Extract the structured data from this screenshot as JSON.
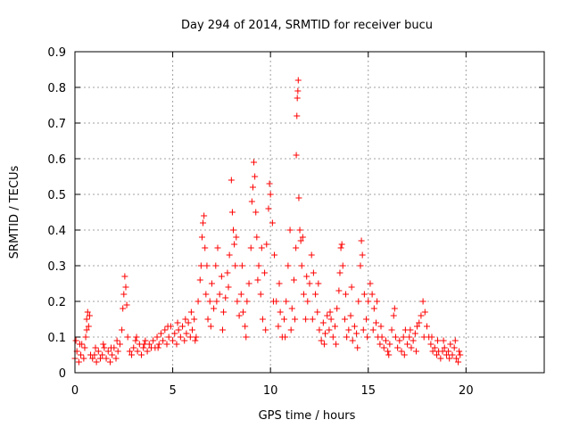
{
  "chart_data": {
    "type": "scatter",
    "title": "Day 294 of 2014, SRMTID for receiver bucu",
    "xlabel": "GPS time / hours",
    "ylabel": "SRMTID / TECUs",
    "xlim": [
      0,
      24
    ],
    "ylim": [
      0,
      0.9
    ],
    "xticks": [
      0,
      5,
      10,
      15,
      20
    ],
    "xtick_labels": [
      "0",
      "5",
      "10",
      "15",
      "20"
    ],
    "yticks": [
      0,
      0.1,
      0.2,
      0.3,
      0.4,
      0.5,
      0.6,
      0.7,
      0.8,
      0.9
    ],
    "ytick_labels": [
      "0",
      "0.1",
      "0.2",
      "0.3",
      "0.4",
      "0.5",
      "0.6",
      "0.7",
      "0.8",
      "0.9"
    ],
    "grid": true,
    "marker": "+",
    "color": "#ff0000",
    "series": [
      {
        "name": "SRMTID",
        "points": [
          [
            0.0,
            0.04
          ],
          [
            0.1,
            0.06
          ],
          [
            0.2,
            0.03
          ],
          [
            0.3,
            0.05
          ],
          [
            0.35,
            0.08
          ],
          [
            0.45,
            0.04
          ],
          [
            0.5,
            0.07
          ],
          [
            0.55,
            0.1
          ],
          [
            0.6,
            0.15
          ],
          [
            0.65,
            0.17
          ],
          [
            0.7,
            0.13
          ],
          [
            0.75,
            0.16
          ],
          [
            0.8,
            0.05
          ],
          [
            0.9,
            0.04
          ],
          [
            1.0,
            0.05
          ],
          [
            1.1,
            0.03
          ],
          [
            1.2,
            0.06
          ],
          [
            1.3,
            0.04
          ],
          [
            1.4,
            0.05
          ],
          [
            1.5,
            0.07
          ],
          [
            1.6,
            0.04
          ],
          [
            1.7,
            0.06
          ],
          [
            1.8,
            0.03
          ],
          [
            1.9,
            0.05
          ],
          [
            2.0,
            0.07
          ],
          [
            2.1,
            0.04
          ],
          [
            2.2,
            0.06
          ],
          [
            2.3,
            0.08
          ],
          [
            2.4,
            0.12
          ],
          [
            2.45,
            0.18
          ],
          [
            2.5,
            0.22
          ],
          [
            2.55,
            0.27
          ],
          [
            2.6,
            0.24
          ],
          [
            2.65,
            0.19
          ],
          [
            2.7,
            0.1
          ],
          [
            2.8,
            0.06
          ],
          [
            2.9,
            0.05
          ],
          [
            3.0,
            0.07
          ],
          [
            3.1,
            0.09
          ],
          [
            3.2,
            0.06
          ],
          [
            3.3,
            0.08
          ],
          [
            3.4,
            0.05
          ],
          [
            3.5,
            0.07
          ],
          [
            3.6,
            0.09
          ],
          [
            3.7,
            0.06
          ],
          [
            3.8,
            0.08
          ],
          [
            3.9,
            0.07
          ],
          [
            4.0,
            0.09
          ],
          [
            4.1,
            0.07
          ],
          [
            4.2,
            0.1
          ],
          [
            4.3,
            0.08
          ],
          [
            4.4,
            0.11
          ],
          [
            4.5,
            0.09
          ],
          [
            4.6,
            0.12
          ],
          [
            4.7,
            0.08
          ],
          [
            4.8,
            0.1
          ],
          [
            4.9,
            0.13
          ],
          [
            5.0,
            0.09
          ],
          [
            5.1,
            0.11
          ],
          [
            5.2,
            0.08
          ],
          [
            5.3,
            0.12
          ],
          [
            5.4,
            0.1
          ],
          [
            5.5,
            0.13
          ],
          [
            5.6,
            0.09
          ],
          [
            5.7,
            0.11
          ],
          [
            5.8,
            0.14
          ],
          [
            5.9,
            0.1
          ],
          [
            6.0,
            0.12
          ],
          [
            6.1,
            0.15
          ],
          [
            6.2,
            0.1
          ],
          [
            6.3,
            0.2
          ],
          [
            6.4,
            0.26
          ],
          [
            6.5,
            0.38
          ],
          [
            6.55,
            0.42
          ],
          [
            6.6,
            0.44
          ],
          [
            6.65,
            0.35
          ],
          [
            6.7,
            0.22
          ],
          [
            6.8,
            0.15
          ],
          [
            6.9,
            0.2
          ],
          [
            7.0,
            0.25
          ],
          [
            7.1,
            0.18
          ],
          [
            7.2,
            0.3
          ],
          [
            7.3,
            0.35
          ],
          [
            7.4,
            0.22
          ],
          [
            7.5,
            0.27
          ],
          [
            7.6,
            0.17
          ],
          [
            7.7,
            0.21
          ],
          [
            7.8,
            0.28
          ],
          [
            7.9,
            0.33
          ],
          [
            8.0,
            0.54
          ],
          [
            8.05,
            0.45
          ],
          [
            8.1,
            0.4
          ],
          [
            8.15,
            0.36
          ],
          [
            8.2,
            0.3
          ],
          [
            8.3,
            0.2
          ],
          [
            8.4,
            0.16
          ],
          [
            8.5,
            0.22
          ],
          [
            8.6,
            0.17
          ],
          [
            8.7,
            0.13
          ],
          [
            8.8,
            0.2
          ],
          [
            8.9,
            0.25
          ],
          [
            9.0,
            0.35
          ],
          [
            9.05,
            0.48
          ],
          [
            9.1,
            0.52
          ],
          [
            9.15,
            0.59
          ],
          [
            9.2,
            0.55
          ],
          [
            9.25,
            0.45
          ],
          [
            9.3,
            0.38
          ],
          [
            9.4,
            0.3
          ],
          [
            9.5,
            0.22
          ],
          [
            9.6,
            0.15
          ],
          [
            9.7,
            0.28
          ],
          [
            9.8,
            0.36
          ],
          [
            9.9,
            0.46
          ],
          [
            9.95,
            0.53
          ],
          [
            10.0,
            0.5
          ],
          [
            10.1,
            0.42
          ],
          [
            10.2,
            0.33
          ],
          [
            10.3,
            0.2
          ],
          [
            10.4,
            0.13
          ],
          [
            10.5,
            0.17
          ],
          [
            10.6,
            0.1
          ],
          [
            10.7,
            0.15
          ],
          [
            10.8,
            0.2
          ],
          [
            10.9,
            0.3
          ],
          [
            11.0,
            0.4
          ],
          [
            11.1,
            0.18
          ],
          [
            11.2,
            0.26
          ],
          [
            11.3,
            0.35
          ],
          [
            11.32,
            0.61
          ],
          [
            11.35,
            0.72
          ],
          [
            11.37,
            0.77
          ],
          [
            11.4,
            0.79
          ],
          [
            11.42,
            0.82
          ],
          [
            11.45,
            0.49
          ],
          [
            11.5,
            0.4
          ],
          [
            11.55,
            0.37
          ],
          [
            11.6,
            0.3
          ],
          [
            11.7,
            0.22
          ],
          [
            11.8,
            0.15
          ],
          [
            11.9,
            0.2
          ],
          [
            12.0,
            0.25
          ],
          [
            12.1,
            0.33
          ],
          [
            12.2,
            0.28
          ],
          [
            12.3,
            0.22
          ],
          [
            12.4,
            0.17
          ],
          [
            12.5,
            0.12
          ],
          [
            12.6,
            0.09
          ],
          [
            12.7,
            0.14
          ],
          [
            12.8,
            0.11
          ],
          [
            12.9,
            0.16
          ],
          [
            13.0,
            0.12
          ],
          [
            13.1,
            0.15
          ],
          [
            13.2,
            0.1
          ],
          [
            13.3,
            0.13
          ],
          [
            13.4,
            0.18
          ],
          [
            13.5,
            0.23
          ],
          [
            13.6,
            0.35
          ],
          [
            13.65,
            0.36
          ],
          [
            13.7,
            0.3
          ],
          [
            13.8,
            0.15
          ],
          [
            13.9,
            0.1
          ],
          [
            14.0,
            0.12
          ],
          [
            14.1,
            0.16
          ],
          [
            14.2,
            0.09
          ],
          [
            14.3,
            0.13
          ],
          [
            14.4,
            0.11
          ],
          [
            14.5,
            0.2
          ],
          [
            14.6,
            0.3
          ],
          [
            14.65,
            0.37
          ],
          [
            14.7,
            0.33
          ],
          [
            14.8,
            0.22
          ],
          [
            14.9,
            0.15
          ],
          [
            15.0,
            0.2
          ],
          [
            15.1,
            0.25
          ],
          [
            15.2,
            0.22
          ],
          [
            15.3,
            0.18
          ],
          [
            15.4,
            0.14
          ],
          [
            15.5,
            0.1
          ],
          [
            15.6,
            0.08
          ],
          [
            15.7,
            0.1
          ],
          [
            15.8,
            0.07
          ],
          [
            15.9,
            0.09
          ],
          [
            16.0,
            0.06
          ],
          [
            16.1,
            0.08
          ],
          [
            16.2,
            0.12
          ],
          [
            16.3,
            0.16
          ],
          [
            16.4,
            0.1
          ],
          [
            16.5,
            0.07
          ],
          [
            16.6,
            0.09
          ],
          [
            16.7,
            0.06
          ],
          [
            16.8,
            0.1
          ],
          [
            16.9,
            0.12
          ],
          [
            17.0,
            0.08
          ],
          [
            17.1,
            0.1
          ],
          [
            17.2,
            0.07
          ],
          [
            17.3,
            0.09
          ],
          [
            17.4,
            0.11
          ],
          [
            17.5,
            0.13
          ],
          [
            17.6,
            0.14
          ],
          [
            17.7,
            0.16
          ],
          [
            17.8,
            0.2
          ],
          [
            17.9,
            0.17
          ],
          [
            18.0,
            0.13
          ],
          [
            18.1,
            0.1
          ],
          [
            18.2,
            0.08
          ],
          [
            18.3,
            0.06
          ],
          [
            18.4,
            0.07
          ],
          [
            18.5,
            0.05
          ],
          [
            18.6,
            0.06
          ],
          [
            18.7,
            0.04
          ],
          [
            18.8,
            0.06
          ],
          [
            18.9,
            0.07
          ],
          [
            19.0,
            0.05
          ],
          [
            19.1,
            0.06
          ],
          [
            19.2,
            0.08
          ],
          [
            19.3,
            0.05
          ],
          [
            19.4,
            0.07
          ],
          [
            19.5,
            0.04
          ],
          [
            19.6,
            0.03
          ],
          [
            19.7,
            0.05
          ],
          [
            0.05,
            0.09
          ],
          [
            0.25,
            0.08
          ],
          [
            0.6,
            0.12
          ],
          [
            1.05,
            0.07
          ],
          [
            1.45,
            0.08
          ],
          [
            1.85,
            0.07
          ],
          [
            2.15,
            0.09
          ],
          [
            3.15,
            0.1
          ],
          [
            3.55,
            0.08
          ],
          [
            4.25,
            0.07
          ],
          [
            4.75,
            0.13
          ],
          [
            5.25,
            0.14
          ],
          [
            5.65,
            0.15
          ],
          [
            5.95,
            0.17
          ],
          [
            6.15,
            0.09
          ],
          [
            6.45,
            0.3
          ],
          [
            6.75,
            0.3
          ],
          [
            6.95,
            0.13
          ],
          [
            7.25,
            0.2
          ],
          [
            7.55,
            0.12
          ],
          [
            7.85,
            0.24
          ],
          [
            8.25,
            0.38
          ],
          [
            8.55,
            0.3
          ],
          [
            8.75,
            0.1
          ],
          [
            9.35,
            0.26
          ],
          [
            9.55,
            0.35
          ],
          [
            9.75,
            0.12
          ],
          [
            10.15,
            0.2
          ],
          [
            10.45,
            0.25
          ],
          [
            10.75,
            0.1
          ],
          [
            11.05,
            0.12
          ],
          [
            11.25,
            0.15
          ],
          [
            11.65,
            0.38
          ],
          [
            11.85,
            0.27
          ],
          [
            12.15,
            0.15
          ],
          [
            12.45,
            0.25
          ],
          [
            12.75,
            0.08
          ],
          [
            13.05,
            0.17
          ],
          [
            13.35,
            0.08
          ],
          [
            13.55,
            0.28
          ],
          [
            13.85,
            0.22
          ],
          [
            14.15,
            0.24
          ],
          [
            14.45,
            0.07
          ],
          [
            14.75,
            0.12
          ],
          [
            14.95,
            0.1
          ],
          [
            15.25,
            0.12
          ],
          [
            15.45,
            0.2
          ],
          [
            15.65,
            0.13
          ],
          [
            16.05,
            0.05
          ],
          [
            16.35,
            0.18
          ],
          [
            16.85,
            0.05
          ],
          [
            17.15,
            0.12
          ],
          [
            17.45,
            0.06
          ],
          [
            17.85,
            0.1
          ],
          [
            18.25,
            0.1
          ],
          [
            18.55,
            0.09
          ],
          [
            18.85,
            0.09
          ],
          [
            19.15,
            0.04
          ],
          [
            19.45,
            0.09
          ],
          [
            19.65,
            0.06
          ]
        ]
      }
    ]
  }
}
